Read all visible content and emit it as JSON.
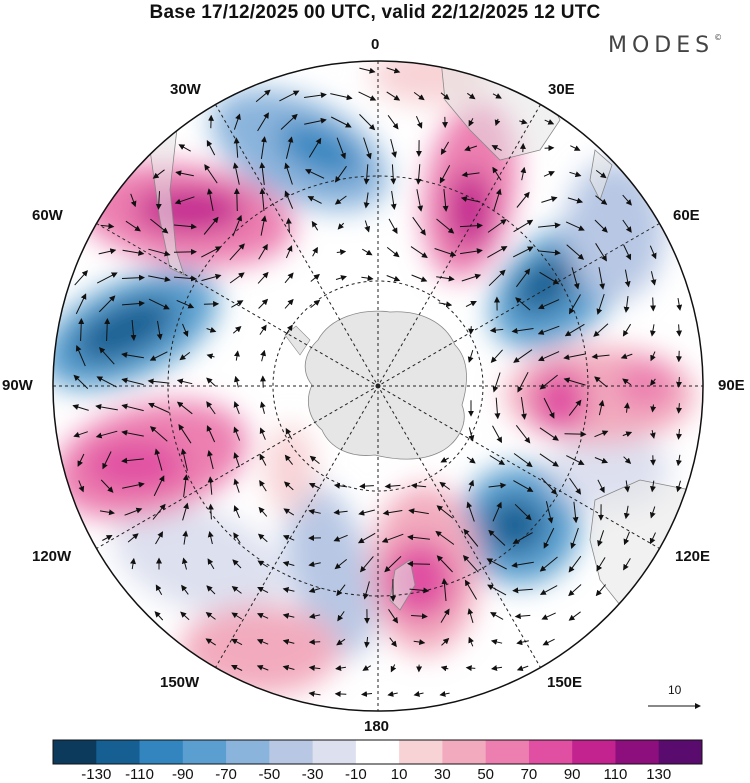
{
  "title": "Base 17/12/2025 00 UTC, valid 22/12/2025 12 UTC",
  "brand": "MODES",
  "brand_mark": "©",
  "longitude_labels": {
    "l0": "0",
    "l30e": "30E",
    "l60e": "60E",
    "l90e": "90E",
    "l120e": "120E",
    "l150e": "150E",
    "l180": "180",
    "l150w": "150W",
    "l120w": "120W",
    "l90w": "90W",
    "l60w": "60W",
    "l30w": "30W"
  },
  "reference_vector_label": "10",
  "colorbar": {
    "ticks": [
      "-130",
      "-110",
      "-90",
      "-70",
      "-50",
      "-30",
      "-10",
      "10",
      "30",
      "50",
      "70",
      "90",
      "110",
      "130"
    ],
    "colors": [
      "#0b3a5c",
      "#155f92",
      "#3385bf",
      "#5a9fcf",
      "#8ab4dc",
      "#b7c7e4",
      "#dde0ef",
      "#ffffff",
      "#f8d3d6",
      "#f2abbe",
      "#ec7fb0",
      "#e04fa2",
      "#c2238f",
      "#8c0f7d",
      "#5a0b6e"
    ]
  },
  "colors": {
    "land": "#e6e6e6",
    "coast": "#888888",
    "grid": "#222222",
    "vector": "#111111"
  }
}
